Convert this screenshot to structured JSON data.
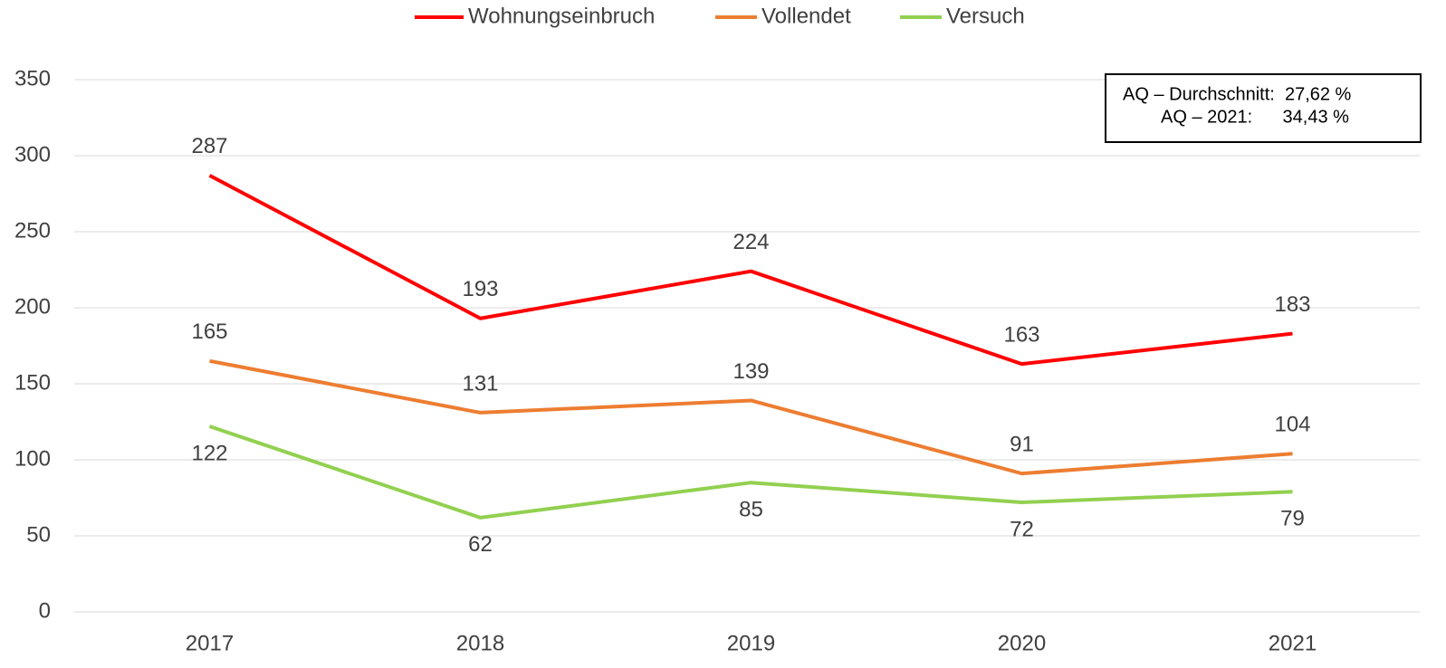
{
  "chart_data": {
    "type": "line",
    "categories": [
      "2017",
      "2018",
      "2019",
      "2020",
      "2021"
    ],
    "series": [
      {
        "name": "Wohnungseinbruch",
        "color": "#ff0000",
        "values": [
          287,
          193,
          224,
          163,
          183
        ]
      },
      {
        "name": "Vollendet",
        "color": "#ed7d31",
        "values": [
          165,
          131,
          139,
          91,
          104
        ]
      },
      {
        "name": "Versuch",
        "color": "#92d050",
        "values": [
          122,
          62,
          85,
          72,
          79
        ]
      }
    ],
    "ylim": [
      0,
      350
    ],
    "yticks": [
      0,
      50,
      100,
      150,
      200,
      250,
      300,
      350
    ],
    "grid": true,
    "legend": "top",
    "annotations": [
      "AQ – Durchschnitt:  27,62 %",
      "AQ – 2021:      34,43 %"
    ]
  }
}
